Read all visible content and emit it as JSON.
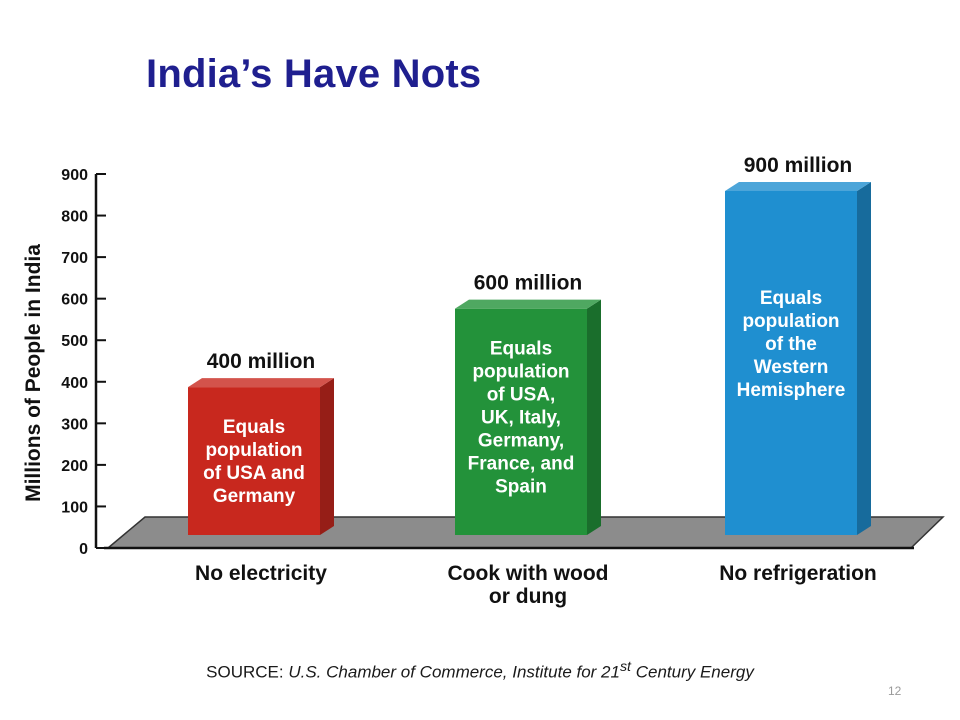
{
  "slide": {
    "title": "India’s Have Nots",
    "number": "12"
  },
  "source": {
    "label": "SOURCE: ",
    "text_before_sup": "U.S. Chamber of Commerce, Institute for 21",
    "superscript": "st",
    "text_after_sup": " Century Energy"
  },
  "colors": {
    "title": "#1f1f8f",
    "floor": "#8c8c8c",
    "red": "#c8281e",
    "green": "#23923a",
    "blue": "#1f8fd0"
  },
  "chart_data": {
    "type": "bar",
    "ylabel": "Millions of People in India",
    "ylim": [
      0,
      900
    ],
    "ytick_step": 100,
    "ytick_labels": [
      "0",
      "100",
      "200",
      "300",
      "400",
      "500",
      "600",
      "700",
      "800",
      "900"
    ],
    "categories": [
      "No electricity",
      "Cook with wood\nor dung",
      "No refrigeration"
    ],
    "values": [
      400,
      600,
      900
    ],
    "value_labels": [
      "400 million",
      "600 million",
      "900 million"
    ],
    "bar_colors": [
      "#c8281e",
      "#23923a",
      "#1f8fd0"
    ],
    "annotations": [
      [
        "Equals",
        "population",
        "of USA and",
        "Germany"
      ],
      [
        "Equals",
        "population",
        "of USA,",
        "UK, Italy,",
        "Germany,",
        "France, and",
        "Spain"
      ],
      [
        "Equals",
        "population",
        "of the",
        "Western",
        "Hemisphere"
      ]
    ],
    "grid": false,
    "legend": "none"
  }
}
